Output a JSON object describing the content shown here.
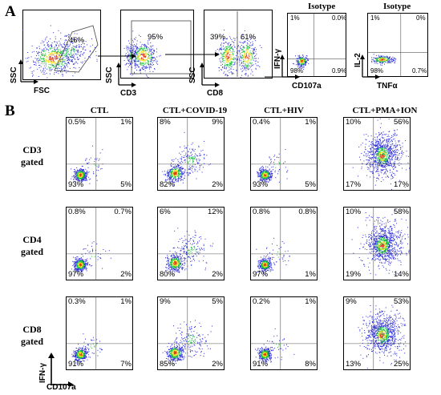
{
  "figure": {
    "panel_a": {
      "letter": "A",
      "fsc_ssc": {
        "xlabel": "FSC",
        "ylabel": "SSC",
        "gate_pct": "46%"
      },
      "cd3": {
        "xlabel": "CD3",
        "ylabel": "SSC",
        "gate_pct": "95%"
      },
      "cd8": {
        "xlabel": "CD8",
        "ylabel": "SSC",
        "left_pct": "39%",
        "right_pct": "61%"
      },
      "iso1": {
        "title": "Isotype",
        "xlabel": "CD107a",
        "ylabel": "IFN-γ",
        "q": {
          "ul": "1%",
          "ur": "0.0%",
          "ll": "98%",
          "lr": "0.9%"
        }
      },
      "iso2": {
        "title": "Isotype",
        "xlabel": "TNFα",
        "ylabel": "IL-2",
        "q": {
          "ul": "1%",
          "ur": "0%",
          "ll": "98%",
          "lr": "0.7%"
        }
      }
    },
    "panel_b": {
      "letter": "B",
      "columns": [
        "CTL",
        "CTL+COVID-19",
        "CTL+HIV",
        "CTL+PMA+ION"
      ],
      "rows": [
        {
          "line1": "CD3",
          "line2": "gated",
          "cells": [
            {
              "ul": "0.5%",
              "ur": "1%",
              "ll": "93%",
              "lr": "5%"
            },
            {
              "ul": "8%",
              "ur": "9%",
              "ll": "82%",
              "lr": "2%"
            },
            {
              "ul": "0.4%",
              "ur": "1%",
              "ll": "93%",
              "lr": "5%"
            },
            {
              "ul": "10%",
              "ur": "56%",
              "ll": "17%",
              "lr": "17%"
            }
          ]
        },
        {
          "line1": "CD4",
          "line2": "gated",
          "cells": [
            {
              "ul": "0.8%",
              "ur": "0.7%",
              "ll": "97%",
              "lr": "2%"
            },
            {
              "ul": "6%",
              "ur": "12%",
              "ll": "80%",
              "lr": "2%"
            },
            {
              "ul": "0.8%",
              "ur": "0.8%",
              "ll": "97%",
              "lr": "1%"
            },
            {
              "ul": "10%",
              "ur": "58%",
              "ll": "19%",
              "lr": "14%"
            }
          ]
        },
        {
          "line1": "CD8",
          "line2": "gated",
          "cells": [
            {
              "ul": "0.3%",
              "ur": "1%",
              "ll": "91%",
              "lr": "7%"
            },
            {
              "ul": "9%",
              "ur": "5%",
              "ll": "85%",
              "lr": "2%"
            },
            {
              "ul": "0.2%",
              "ur": "1%",
              "ll": "91%",
              "lr": "8%"
            },
            {
              "ul": "9%",
              "ur": "53%",
              "ll": "13%",
              "lr": "25%"
            }
          ]
        }
      ],
      "axis_key": {
        "xlabel": "CD107a",
        "ylabel": "IFN-γ"
      }
    },
    "colors": {
      "low_density": "#2b2bd6",
      "mid": "#18c23a",
      "high": "#f0e020",
      "peak": "#e23a1a"
    }
  }
}
